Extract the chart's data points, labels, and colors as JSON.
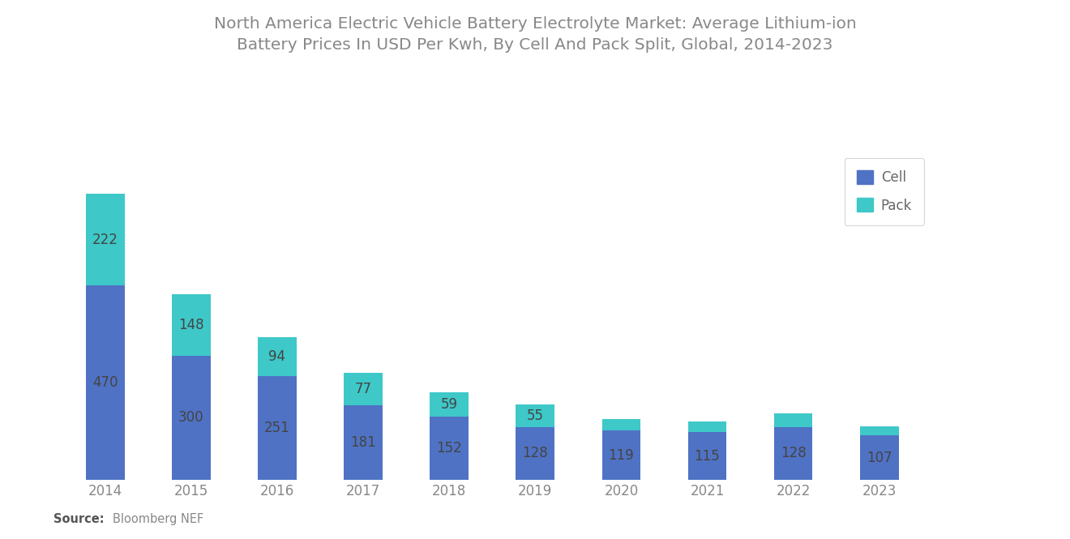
{
  "years": [
    "2014",
    "2015",
    "2016",
    "2017",
    "2018",
    "2019",
    "2020",
    "2021",
    "2022",
    "2023"
  ],
  "cell_values": [
    470,
    300,
    251,
    181,
    152,
    128,
    119,
    115,
    128,
    107
  ],
  "pack_values": [
    222,
    148,
    94,
    77,
    59,
    55,
    28,
    26,
    32,
    22
  ],
  "cell_color": "#4F72C4",
  "pack_color": "#3EC8C8",
  "title_line1": "North America Electric Vehicle Battery Electrolyte Market: Average Lithium-ion",
  "title_line2": "Battery Prices In USD Per Kwh, By Cell And Pack Split, Global, 2014-2023",
  "legend_cell": "Cell",
  "legend_pack": "Pack",
  "source_bold": "Source:",
  "source_normal": "  Bloomberg NEF",
  "background_color": "#ffffff",
  "title_fontsize": 14.5,
  "label_fontsize": 12,
  "tick_fontsize": 12,
  "legend_fontsize": 12,
  "title_color": "#888888",
  "label_color": "#444444",
  "tick_color": "#888888",
  "bar_width": 0.45,
  "pack_labeled_years": [
    "2014",
    "2015",
    "2016",
    "2017",
    "2018",
    "2019"
  ]
}
